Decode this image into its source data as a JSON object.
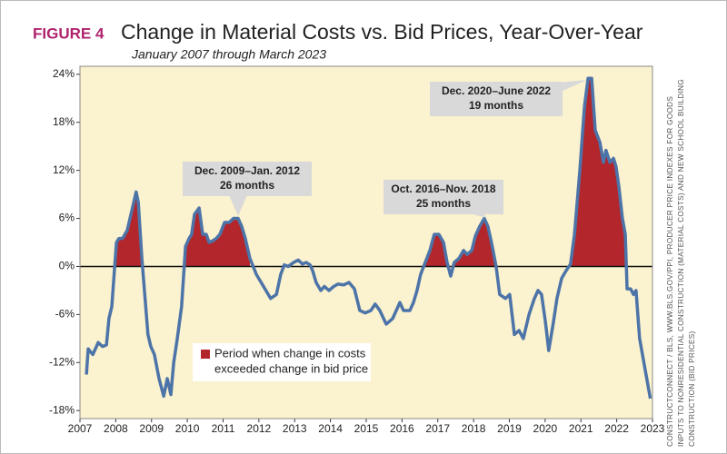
{
  "chart_data": {
    "type": "line",
    "figure_label": "FIGURE 4",
    "title": "Change in Material Costs vs. Bid Prices, Year-Over-Year",
    "subtitle": "January 2007 through March 2023",
    "source": [
      "CONSTRUCTCONNECT / BLS, WWW.BLS.GOV/PPI, PRODUCER PRICE INDEXES FOR GOODS",
      "INPUTS TO NONRESIDENTIAL CONSTRUCTION (MATERIAL COSTS) AND NEW SCHOOL BUILDING",
      "CONSTRUCTION (BID PRICES)"
    ],
    "xlim": [
      2007,
      2023
    ],
    "xticks": [
      2007,
      2008,
      2009,
      2010,
      2011,
      2012,
      2013,
      2014,
      2015,
      2016,
      2017,
      2018,
      2019,
      2020,
      2021,
      2022,
      2023
    ],
    "ylim": [
      -19,
      25
    ],
    "yticks": [
      {
        "value": -18,
        "label": "-18%"
      },
      {
        "value": -12,
        "label": "-12%"
      },
      {
        "value": -6,
        "label": "-6%"
      },
      {
        "value": 0,
        "label": "0%"
      },
      {
        "value": 6,
        "label": "6%"
      },
      {
        "value": 12,
        "label": "12%"
      },
      {
        "value": 18,
        "label": "18%"
      },
      {
        "value": 24,
        "label": "24%"
      }
    ],
    "background": "#fbf2cf",
    "series": [
      {
        "color": "#4d74a8",
        "x": [
          2007.18,
          2007.23,
          2007.36,
          2007.51,
          2007.63,
          2007.74,
          2007.81,
          2007.89,
          2007.97,
          2008.02,
          2008.09,
          2008.19,
          2008.32,
          2008.45,
          2008.57,
          2008.63,
          2008.73,
          2008.9,
          2008.98,
          2009.08,
          2009.21,
          2009.34,
          2009.44,
          2009.54,
          2009.62,
          2009.72,
          2009.84,
          2009.95,
          2010.05,
          2010.12,
          2010.2,
          2010.33,
          2010.43,
          2010.53,
          2010.61,
          2010.71,
          2010.81,
          2010.91,
          2011.04,
          2011.17,
          2011.29,
          2011.42,
          2011.52,
          2011.62,
          2011.75,
          2011.93,
          2012.13,
          2012.33,
          2012.49,
          2012.61,
          2012.71,
          2012.82,
          2012.97,
          2013.1,
          2013.22,
          2013.32,
          2013.43,
          2013.5,
          2013.6,
          2013.73,
          2013.83,
          2013.96,
          2014.09,
          2014.21,
          2014.37,
          2014.52,
          2014.67,
          2014.82,
          2014.97,
          2015.13,
          2015.25,
          2015.38,
          2015.56,
          2015.74,
          2015.84,
          2015.94,
          2016.04,
          2016.22,
          2016.32,
          2016.42,
          2016.52,
          2016.65,
          2016.78,
          2016.9,
          2017.03,
          2017.16,
          2017.26,
          2017.36,
          2017.46,
          2017.59,
          2017.72,
          2017.82,
          2017.95,
          2018.05,
          2018.17,
          2018.3,
          2018.4,
          2018.5,
          2018.63,
          2018.73,
          2018.89,
          2019.01,
          2019.14,
          2019.27,
          2019.39,
          2019.55,
          2019.7,
          2019.8,
          2019.9,
          2020.01,
          2020.1,
          2020.23,
          2020.33,
          2020.46,
          2020.59,
          2020.71,
          2020.82,
          2020.97,
          2021.1,
          2021.2,
          2021.3,
          2021.4,
          2021.53,
          2021.63,
          2021.7,
          2021.81,
          2021.91,
          2021.98,
          2022.06,
          2022.16,
          2022.24,
          2022.29,
          2022.39,
          2022.47,
          2022.54,
          2022.64,
          2022.76,
          2022.94
        ],
        "values": [
          -13.5,
          -10.3,
          -11,
          -9.5,
          -10,
          -9.8,
          -6.5,
          -5,
          0,
          3,
          3.5,
          3.5,
          4.5,
          7,
          9.3,
          8,
          1,
          -8.5,
          -10,
          -11,
          -14,
          -16.2,
          -14,
          -16,
          -12,
          -9,
          -5,
          2.5,
          3.5,
          4,
          6.5,
          7.3,
          4,
          4,
          3,
          3.2,
          3.5,
          4,
          5.5,
          5.5,
          6,
          6,
          5,
          3.5,
          1,
          -1,
          -2.5,
          -4,
          -3.5,
          -1,
          0.2,
          0,
          0.5,
          0.8,
          0.3,
          0.5,
          0.2,
          -0.5,
          -2,
          -3,
          -2.5,
          -3,
          -2.5,
          -2.2,
          -2.3,
          -2,
          -2.8,
          -5.5,
          -5.8,
          -5.5,
          -4.7,
          -5.5,
          -7.2,
          -6.5,
          -5.5,
          -4.5,
          -5.5,
          -5.5,
          -4.5,
          -3,
          -1,
          0.5,
          2,
          4,
          4,
          3,
          0.5,
          -1.2,
          0.5,
          1,
          2,
          1.5,
          2,
          3.8,
          5,
          6,
          5,
          3,
          0,
          -3.5,
          -4,
          -3.5,
          -8.5,
          -8,
          -9,
          -6,
          -4,
          -3,
          -3.5,
          -7,
          -10.5,
          -7,
          -4,
          -1.5,
          -0.5,
          0.3,
          4,
          12,
          20,
          23.5,
          23.5,
          17,
          15.5,
          13,
          14.5,
          13,
          13.5,
          12.5,
          10,
          6,
          4,
          -2.8,
          -2.8,
          -3.5,
          -3,
          -9,
          -12,
          -16.5
        ]
      }
    ],
    "shaded_periods": [
      [
        2007.95,
        2008.75
      ],
      [
        2009.95,
        2011.75
      ],
      [
        2016.55,
        2018.65
      ],
      [
        2020.7,
        2022.27
      ]
    ],
    "shade_color": "#b3262b",
    "legend": [
      "Period when change in costs",
      "exceeded change in bid price"
    ],
    "annotations": [
      [
        "Dec. 2009–Jan. 2012",
        "26 months"
      ],
      [
        "Oct. 2016–Nov. 2018",
        "25 months"
      ],
      [
        "Dec. 2020–June 2022",
        "19 months"
      ]
    ]
  }
}
